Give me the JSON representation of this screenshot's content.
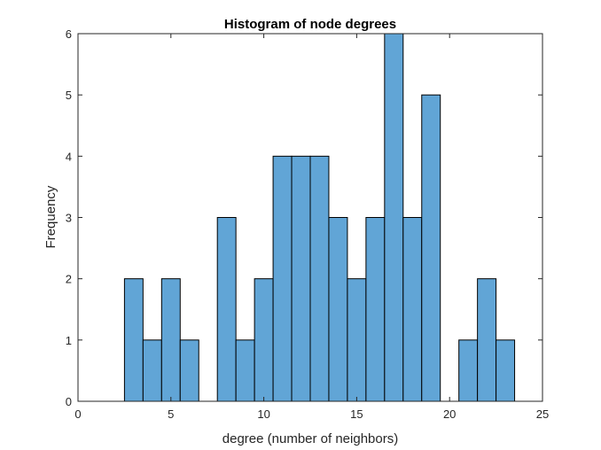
{
  "chart_data": {
    "type": "bar",
    "title": "Histogram of node degrees",
    "xlabel": "degree (number of neighbors)",
    "ylabel": "Frequency",
    "xlim": [
      0,
      25
    ],
    "ylim": [
      0,
      6
    ],
    "xticks": [
      "0",
      "5",
      "10",
      "15",
      "20",
      "25"
    ],
    "yticks": [
      "0",
      "1",
      "2",
      "3",
      "4",
      "5",
      "6"
    ],
    "bin_width": 1,
    "bins": [
      {
        "center": 3,
        "count": 2
      },
      {
        "center": 4,
        "count": 1
      },
      {
        "center": 5,
        "count": 2
      },
      {
        "center": 6,
        "count": 1
      },
      {
        "center": 7,
        "count": 0
      },
      {
        "center": 8,
        "count": 3
      },
      {
        "center": 9,
        "count": 1
      },
      {
        "center": 10,
        "count": 2
      },
      {
        "center": 11,
        "count": 4
      },
      {
        "center": 12,
        "count": 4
      },
      {
        "center": 13,
        "count": 4
      },
      {
        "center": 14,
        "count": 3
      },
      {
        "center": 15,
        "count": 2
      },
      {
        "center": 16,
        "count": 3
      },
      {
        "center": 17,
        "count": 6
      },
      {
        "center": 18,
        "count": 3
      },
      {
        "center": 19,
        "count": 5
      },
      {
        "center": 20,
        "count": 0
      },
      {
        "center": 21,
        "count": 1
      },
      {
        "center": 22,
        "count": 2
      },
      {
        "center": 23,
        "count": 1
      }
    ],
    "grid": false,
    "bar_color": "#61a5d6",
    "edge_color": "#000000"
  }
}
